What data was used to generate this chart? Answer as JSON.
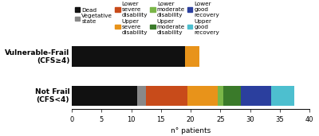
{
  "groups": [
    "Not Frail\n(CFS<4)",
    "Vulnerable-Frail\n(CFS≥4)"
  ],
  "categories": [
    "Dead",
    "Vegetative\nstate",
    "Lower\nsevere\ndisability",
    "Upper\nsevere\ndisability",
    "Lower\nmoderate\ndisability",
    "Upper\nmoderate\ndisability",
    "Lower\ngood\nrecovery",
    "Upper\ngood\nrecovery"
  ],
  "legend_labels": [
    "Dead",
    "Vegetative\nstate",
    "Lower\nsevere\ndisability",
    "Upper\nsevere\ndisability",
    "Lower\nmoderate\ndisability",
    "Upper\nmoderate\ndisability",
    "Lower\ngood\nrecovery",
    "Upper\ngood\nrecovery"
  ],
  "colors": [
    "#111111",
    "#888888",
    "#c84b1a",
    "#e8931a",
    "#7ab648",
    "#3a7a2a",
    "#2b3f9e",
    "#4dbfcf"
  ],
  "data": [
    [
      11,
      1.5,
      7,
      5,
      1,
      3,
      5,
      4
    ],
    [
      19,
      0,
      0,
      2.5,
      0,
      0,
      0,
      0
    ]
  ],
  "xlim": [
    0,
    40
  ],
  "xticks": [
    0,
    5,
    10,
    15,
    20,
    25,
    30,
    35,
    40
  ],
  "xlabel": "n° patients",
  "bar_height": 0.52,
  "figsize": [
    4.0,
    1.71
  ],
  "dpi": 100,
  "legend_fontsize": 5.2,
  "axis_fontsize": 6.5,
  "tick_fontsize": 6.0,
  "ylabel_fontsize": 6.5
}
